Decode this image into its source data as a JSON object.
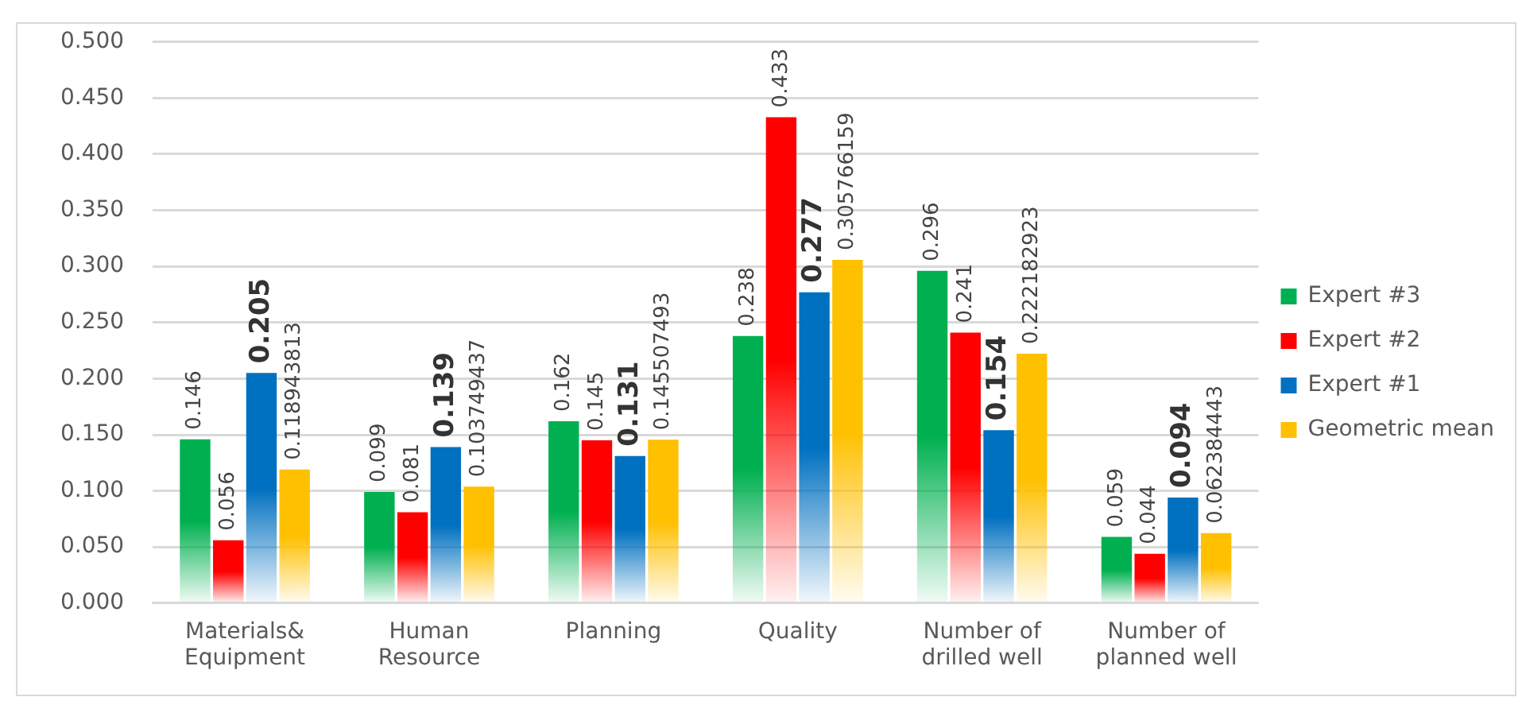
{
  "chart_data": {
    "type": "bar",
    "categories": [
      "Materials&\nEquipment",
      "Human\nResource",
      "Planning",
      "Quality",
      "Number of\ndrilled well",
      "Number of\nplanned well"
    ],
    "series": [
      {
        "name": "Expert #3",
        "color": "#00b050",
        "values": [
          0.146,
          0.099,
          0.162,
          0.238,
          0.296,
          0.059
        ]
      },
      {
        "name": "Expert #2",
        "color": "#ff0000",
        "values": [
          0.056,
          0.081,
          0.145,
          0.433,
          0.241,
          0.044
        ]
      },
      {
        "name": "Expert #1",
        "color": "#0070c0",
        "values": [
          0.205,
          0.139,
          0.131,
          0.277,
          0.154,
          0.094
        ]
      },
      {
        "name": "Geometric mean",
        "color": "#ffc000",
        "values": [
          0.118943813,
          0.103749437,
          0.145507493,
          0.305766159,
          0.222182923,
          0.062384443
        ]
      }
    ],
    "ylim": [
      0,
      0.5
    ],
    "yticks": [
      {
        "value": 0,
        "label": "0.000"
      },
      {
        "value": 0.05,
        "label": "0.050"
      },
      {
        "value": 0.1,
        "label": "0.100"
      },
      {
        "value": 0.15,
        "label": "0.150"
      },
      {
        "value": 0.2,
        "label": "0.200"
      },
      {
        "value": 0.25,
        "label": "0.250"
      },
      {
        "value": 0.3,
        "label": "0.300"
      },
      {
        "value": 0.35,
        "label": "0.350"
      },
      {
        "value": 0.4,
        "label": "0.400"
      },
      {
        "value": 0.45,
        "label": "0.450"
      },
      {
        "value": 0.5,
        "label": "0.500"
      }
    ],
    "grid": "y",
    "legend": "right",
    "data_labels": true
  }
}
